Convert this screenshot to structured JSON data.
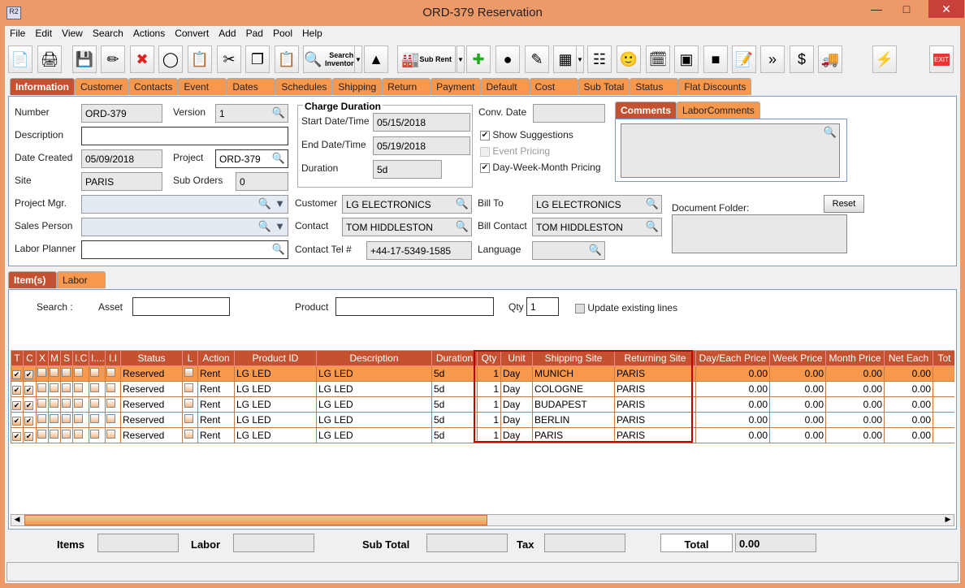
{
  "window": {
    "title": "ORD-379 Reservation",
    "app_icon": "R2"
  },
  "menu": [
    "File",
    "Edit",
    "View",
    "Search",
    "Actions",
    "Convert",
    "Add",
    "Pad",
    "Pool",
    "Help"
  ],
  "toolbar": {
    "search_inventory": "Search Inventory",
    "sub_rent": "Sub Rent",
    "exit": "EXIT",
    "icons": [
      "new-document-icon",
      "print-icon",
      "save-icon",
      "edit-pencil-icon",
      "delete-icon",
      "binoculars-icon",
      "copy-order-icon",
      "cut-icon",
      "copy-icon",
      "paste-icon",
      "search-inventory-icon",
      "shapes-icon",
      "sub-rent-icon",
      "add-remove-icon",
      "balls-icon",
      "checklist-icon",
      "grid-icon",
      "hierarchy-icon",
      "smiley-icon",
      "schedule-icon",
      "stamp-icon",
      "cube-icon",
      "notepad-icon",
      "transfer-icon",
      "money-icon",
      "truck-icon"
    ]
  },
  "main_tabs": [
    "Information",
    "Customer",
    "Contacts",
    "Event",
    "Dates",
    "Schedules",
    "Shipping",
    "Return",
    "Payment",
    "Default",
    "Cost",
    "Sub Total",
    "Status",
    "Flat Discounts"
  ],
  "info": {
    "number_label": "Number",
    "number": "ORD-379",
    "version_label": "Version",
    "version": "1",
    "description_label": "Description",
    "description": "",
    "date_created_label": "Date Created",
    "date_created": "05/09/2018",
    "project_label": "Project",
    "project": "ORD-379",
    "site_label": "Site",
    "site": "PARIS",
    "sub_orders_label": "Sub Orders",
    "sub_orders": "0",
    "project_mgr_label": "Project Mgr.",
    "sales_person_label": "Sales Person",
    "labor_planner_label": "Labor Planner",
    "charge_duration_title": "Charge Duration",
    "start_label": "Start Date/Time",
    "start": "05/15/2018",
    "end_label": "End Date/Time",
    "end": "05/19/2018",
    "duration_label": "Duration",
    "duration": "5d",
    "conv_date_label": "Conv. Date",
    "show_suggestions": "Show Suggestions",
    "event_pricing": "Event Pricing",
    "dwm_pricing": "Day-Week-Month Pricing",
    "customer_label": "Customer",
    "customer": "LG ELECTRONICS",
    "contact_label": "Contact",
    "contact": "TOM HIDDLESTON",
    "contact_tel_label": "Contact Tel #",
    "contact_tel": "+44-17-5349-1585",
    "bill_to_label": "Bill To",
    "bill_to": "LG ELECTRONICS",
    "bill_contact_label": "Bill Contact",
    "bill_contact": "TOM HIDDLESTON",
    "language_label": "Language",
    "comments_tab": "Comments",
    "labor_comments_tab": "LaborComments",
    "document_folder_label": "Document Folder:",
    "reset": "Reset"
  },
  "items_tabs": [
    "Item(s)",
    "Labor"
  ],
  "filter": {
    "search_label": "Search :",
    "asset_label": "Asset",
    "product_label": "Product",
    "qty_label": "Qty",
    "qty": "1",
    "update_label": "Update existing lines"
  },
  "table": {
    "columns": [
      "T",
      "C",
      "X",
      "M",
      "S",
      "I.C",
      "I....",
      "I.I",
      "Status",
      "L",
      "Action",
      "Product ID",
      "Description",
      "Duration",
      "Qty",
      "Unit",
      "Shipping Site",
      "Returning Site",
      "Day/Each Price",
      "Week Price",
      "Month Price",
      "Net Each",
      "Tot"
    ],
    "rows": [
      {
        "status": "Reserved",
        "action": "Rent",
        "product_id": "LG LED",
        "description": "LG LED",
        "duration": "5d",
        "qty": "1",
        "unit": "Day",
        "shipping": "MUNICH",
        "returning": "PARIS",
        "day": "0.00",
        "week": "0.00",
        "month": "0.00",
        "net": "0.00"
      },
      {
        "status": "Reserved",
        "action": "Rent",
        "product_id": "LG LED",
        "description": "LG LED",
        "duration": "5d",
        "qty": "1",
        "unit": "Day",
        "shipping": "COLOGNE",
        "returning": "PARIS",
        "day": "0.00",
        "week": "0.00",
        "month": "0.00",
        "net": "0.00"
      },
      {
        "status": "Reserved",
        "action": "Rent",
        "product_id": "LG LED",
        "description": "LG LED",
        "duration": "5d",
        "qty": "1",
        "unit": "Day",
        "shipping": "BUDAPEST",
        "returning": "PARIS",
        "day": "0.00",
        "week": "0.00",
        "month": "0.00",
        "net": "0.00"
      },
      {
        "status": "Reserved",
        "action": "Rent",
        "product_id": "LG LED",
        "description": "LG LED",
        "duration": "5d",
        "qty": "1",
        "unit": "Day",
        "shipping": "BERLIN",
        "returning": "PARIS",
        "day": "0.00",
        "week": "0.00",
        "month": "0.00",
        "net": "0.00"
      },
      {
        "status": "Reserved",
        "action": "Rent",
        "product_id": "LG LED",
        "description": "LG LED",
        "duration": "5d",
        "qty": "1",
        "unit": "Day",
        "shipping": "PARIS",
        "returning": "PARIS",
        "day": "0.00",
        "week": "0.00",
        "month": "0.00",
        "net": "0.00"
      }
    ]
  },
  "totals": {
    "items_label": "Items",
    "labor_label": "Labor",
    "sub_total_label": "Sub Total",
    "tax_label": "Tax",
    "total_label": "Total",
    "total": "0.00"
  },
  "colors": {
    "frame": "#ee9a68",
    "tab": "#f7984d",
    "tab_active": "#c4512f",
    "highlight_box": "#c00000"
  }
}
